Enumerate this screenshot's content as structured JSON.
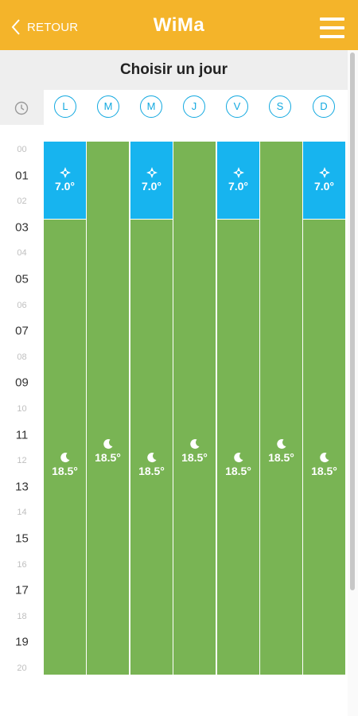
{
  "header": {
    "back_label": "RETOUR",
    "brand": "WiMa"
  },
  "subheader": {
    "title": "Choisir un jour"
  },
  "days": [
    "L",
    "M",
    "M",
    "J",
    "V",
    "S",
    "D"
  ],
  "hours": [
    "00",
    "01",
    "02",
    "03",
    "04",
    "05",
    "06",
    "07",
    "08",
    "09",
    "10",
    "11",
    "12",
    "13",
    "14",
    "15",
    "16",
    "17",
    "18",
    "19",
    "20"
  ],
  "columns": [
    {
      "eco_temp": "7.0°",
      "comfort_temp": "18.5°"
    },
    {
      "comfort_temp": "18.5°"
    },
    {
      "eco_temp": "7.0°",
      "comfort_temp": "18.5°"
    },
    {
      "comfort_temp": "18.5°"
    },
    {
      "eco_temp": "7.0°",
      "comfort_temp": "18.5°"
    },
    {
      "comfort_temp": "18.5°"
    },
    {
      "eco_temp": "7.0°",
      "comfort_temp": "18.5°"
    }
  ],
  "colors": {
    "accent": "#f4b42a",
    "day_blue": "#13a9e0",
    "eco": "#17b4ef",
    "comfort": "#79b454"
  },
  "icons": {
    "back": "chevron-left-icon",
    "menu": "hamburger-menu-icon",
    "clock": "clock-icon",
    "eco": "sun-icon",
    "comfort": "moon-icon"
  }
}
